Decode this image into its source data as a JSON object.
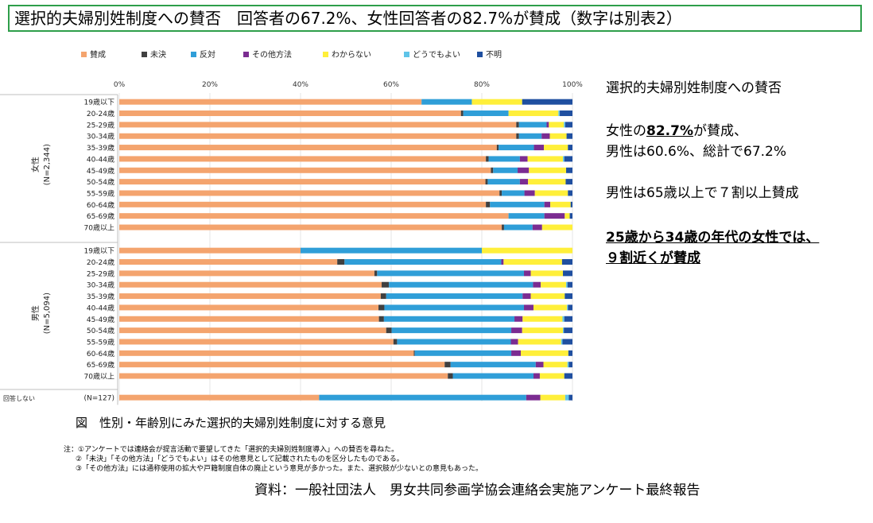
{
  "title": "選択的夫婦別姓制度への賛否　回答者の67.2%、女性回答者の82.7%が賛成（数字は別表2）",
  "side": {
    "heading": "選択的夫婦別姓制度への賛否",
    "line1_a": "女性の",
    "line1_b": "82.7%",
    "line1_c": "が賛成、",
    "line2": "男性は60.6%、総計で67.2%",
    "line3": "男性は65歳以上で７割以上賛成",
    "line4": "25歳から34歳の年代の女性では、",
    "line5": "９割近くが賛成"
  },
  "caption": "図　性別・年齢別にみた選択的夫婦別姓制度に対する意見",
  "notes": [
    "注：①アンケートでは連絡会が提言活動で要望してきた「選択的夫婦別姓制度導入」への賛否を尋ねた。",
    "②「未決」「その他方法」「どうでもよい」はその他意見として記載されたものを区分したものである。",
    "③「その他方法」には通称使用の拡大や戸籍制度自体の廃止という意見が多かった。また、選択肢が少ないとの意見もあった。"
  ],
  "source": "資料：一般社団法人　男女共同参画学協会連絡会実施アンケート最終報告",
  "chart_data": {
    "type": "bar",
    "orientation": "horizontal",
    "stacked": "percent",
    "xlim": [
      0,
      100
    ],
    "xticks": [
      "0%",
      "20%",
      "40%",
      "60%",
      "80%",
      "100%"
    ],
    "legend_position": "top",
    "legend": [
      {
        "name": "賛成",
        "color": "#f4a46e"
      },
      {
        "name": "未決",
        "color": "#404040"
      },
      {
        "name": "反対",
        "color": "#2f9ed8"
      },
      {
        "name": "その他方法",
        "color": "#7b2c91"
      },
      {
        "name": "わからない",
        "color": "#ffef3a"
      },
      {
        "name": "どうでもよい",
        "color": "#5fc4e8"
      },
      {
        "name": "不明",
        "color": "#1f4fa0"
      }
    ],
    "groups": [
      {
        "label": "女性",
        "n": "(N=2,344)",
        "rows": [
          {
            "label": "19歳以下",
            "values": [
              66.7,
              0,
              11.1,
              0,
              11.1,
              0,
              11.1
            ]
          },
          {
            "label": "20-24歳",
            "values": [
              75.4,
              0.5,
              10.0,
              0,
              11.0,
              0.3,
              2.8
            ]
          },
          {
            "label": "25-29歳",
            "values": [
              87.6,
              0.6,
              6.1,
              0.5,
              3.3,
              0.3,
              1.6
            ]
          },
          {
            "label": "30-34歳",
            "values": [
              87.6,
              0.6,
              5.0,
              1.8,
              3.7,
              0,
              1.3
            ]
          },
          {
            "label": "35-39歳",
            "values": [
              83.3,
              0.4,
              7.8,
              2.2,
              5.3,
              0,
              1.0
            ]
          },
          {
            "label": "40-44歳",
            "values": [
              80.9,
              0.6,
              6.9,
              1.7,
              7.8,
              0.3,
              1.8
            ]
          },
          {
            "label": "45-49歳",
            "values": [
              82.0,
              0.5,
              5.4,
              2.5,
              8.2,
              0,
              1.4
            ]
          },
          {
            "label": "50-54歳",
            "values": [
              80.8,
              0.5,
              7.1,
              1.8,
              8.3,
              0,
              1.5
            ]
          },
          {
            "label": "55-59歳",
            "values": [
              83.9,
              0.5,
              5.0,
              2.3,
              7.3,
              0,
              1.0
            ]
          },
          {
            "label": "60-64歳",
            "values": [
              80.9,
              0.9,
              12.0,
              1.3,
              4.5,
              0,
              0.4
            ]
          },
          {
            "label": "65-69歳",
            "values": [
              85.9,
              0,
              7.9,
              4.5,
              1.1,
              0,
              0.6
            ]
          },
          {
            "label": "70歳以上",
            "values": [
              84.4,
              0.5,
              6.3,
              2.1,
              6.7,
              0,
              0
            ]
          }
        ]
      },
      {
        "label": "男性",
        "n": "(N=5,094)",
        "rows": [
          {
            "label": "19歳以下",
            "values": [
              40.0,
              0,
              40.0,
              0,
              20.0,
              0,
              0
            ]
          },
          {
            "label": "20-24歳",
            "values": [
              48.1,
              1.6,
              34.6,
              0.5,
              12.9,
              0,
              2.3
            ]
          },
          {
            "label": "25-29歳",
            "values": [
              56.3,
              0.6,
              32.4,
              1.5,
              7.1,
              0,
              2.1
            ]
          },
          {
            "label": "30-34歳",
            "values": [
              57.9,
              1.6,
              31.8,
              1.7,
              5.6,
              0.3,
              1.1
            ]
          },
          {
            "label": "35-39歳",
            "values": [
              57.7,
              1.2,
              30.1,
              1.8,
              7.5,
              0,
              1.7
            ]
          },
          {
            "label": "40-44歳",
            "values": [
              57.2,
              1.3,
              30.8,
              2.1,
              7.4,
              0.2,
              1.0
            ]
          },
          {
            "label": "45-49歳",
            "values": [
              57.3,
              1.1,
              28.8,
              1.8,
              8.8,
              0.4,
              1.8
            ]
          },
          {
            "label": "50-54歳",
            "values": [
              58.9,
              1.2,
              26.4,
              2.4,
              9.0,
              0.2,
              1.9
            ]
          },
          {
            "label": "55-59歳",
            "values": [
              60.5,
              0.8,
              25.1,
              1.6,
              9.5,
              0.3,
              2.2
            ]
          },
          {
            "label": "60-64歳",
            "values": [
              65.0,
              0.2,
              21.3,
              2.1,
              10.5,
              0,
              0.9
            ]
          },
          {
            "label": "65-69歳",
            "values": [
              71.8,
              1.3,
              18.8,
              1.7,
              5.3,
              0.3,
              0.8
            ]
          },
          {
            "label": "70歳以上",
            "values": [
              72.5,
              1.1,
              17.8,
              1.4,
              5.4,
              0,
              1.8
            ]
          }
        ]
      },
      {
        "label": "回答しない",
        "n": "",
        "rows": [
          {
            "label": "(N=127)",
            "values": [
              44.1,
              0,
              45.7,
              3.1,
              5.5,
              0.8,
              0.8
            ]
          }
        ]
      }
    ]
  }
}
